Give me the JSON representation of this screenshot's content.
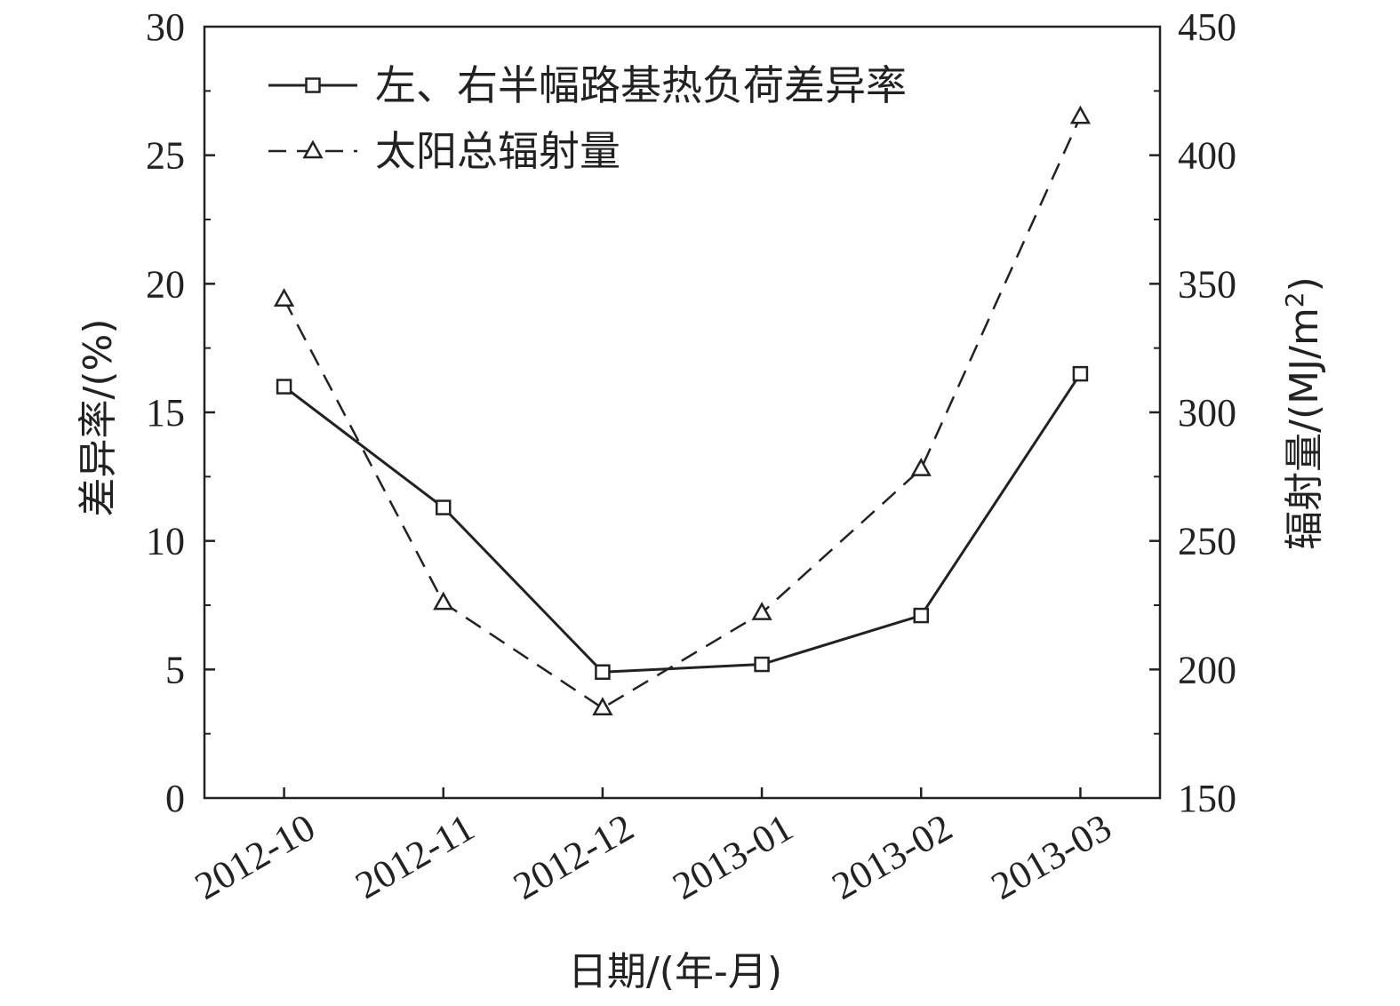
{
  "chart_data": {
    "type": "line",
    "x_categories": [
      "2012-10",
      "2012-11",
      "2012-12",
      "2013-01",
      "2013-02",
      "2013-03"
    ],
    "xlabel": "日期/(年-月)",
    "y_left": {
      "label": "差异率/(%)",
      "lim": [
        0,
        30
      ],
      "ticks": [
        "0",
        "5",
        "10",
        "15",
        "20",
        "25",
        "30"
      ]
    },
    "y_right": {
      "label_main": "辐射量/(MJ/m",
      "label_sup": "2",
      "label_end": ")",
      "lim": [
        150,
        450
      ],
      "ticks": [
        "150",
        "200",
        "250",
        "300",
        "350",
        "400",
        "450"
      ]
    },
    "series": [
      {
        "name": "左、右半幅路基热负荷差异率",
        "axis": "left",
        "line_style": "solid",
        "marker": "square",
        "values": [
          16.0,
          11.3,
          4.9,
          5.2,
          7.1,
          16.5
        ]
      },
      {
        "name": "太阳总辐射量",
        "axis": "right",
        "line_style": "dashed",
        "marker": "triangle",
        "values": [
          344,
          226,
          185,
          222,
          278,
          415
        ]
      }
    ],
    "legend_position": "top-left",
    "grid": false
  },
  "colors": {
    "line": "#222222",
    "background": "#ffffff"
  }
}
